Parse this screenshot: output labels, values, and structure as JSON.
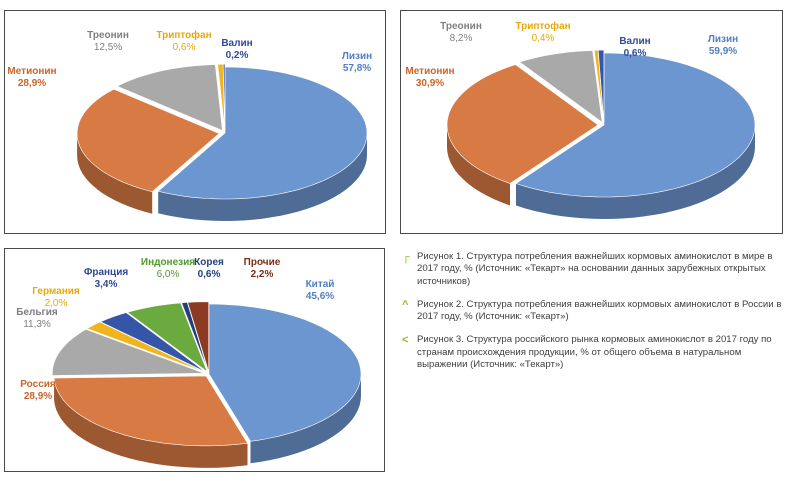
{
  "chart_data": [
    {
      "type": "pie",
      "title": "",
      "style": "3d-exploded-tilted",
      "slices": [
        {
          "label": "Лизин",
          "value": 57.8,
          "value_text": "57,8%",
          "color": "#6c96cf",
          "label_color": "#4f7fc0"
        },
        {
          "label": "Метионин",
          "value": 28.9,
          "value_text": "28,9%",
          "color": "#d87a43",
          "label_color": "#c8652a"
        },
        {
          "label": "Треонин",
          "value": 12.5,
          "value_text": "12,5%",
          "color": "#a9a9a9",
          "label_color": "#7f7f7f"
        },
        {
          "label": "Триптофан",
          "value": 0.6,
          "value_text": "0,6%",
          "color": "#f0b41e",
          "label_color": "#e8a80c"
        },
        {
          "label": "Валин",
          "value": 0.2,
          "value_text": "0,2%",
          "color": "#3556a8",
          "label_color": "#2f4a96"
        }
      ]
    },
    {
      "type": "pie",
      "title": "",
      "style": "3d-exploded-tilted",
      "slices": [
        {
          "label": "Лизин",
          "value": 59.9,
          "value_text": "59,9%",
          "color": "#6c96cf",
          "label_color": "#4f7fc0"
        },
        {
          "label": "Метионин",
          "value": 30.9,
          "value_text": "30,9%",
          "color": "#d87a43",
          "label_color": "#c8652a"
        },
        {
          "label": "Треонин",
          "value": 8.2,
          "value_text": "8,2%",
          "color": "#a9a9a9",
          "label_color": "#7f7f7f"
        },
        {
          "label": "Триптофан",
          "value": 0.4,
          "value_text": "0,4%",
          "color": "#f0b41e",
          "label_color": "#e8a80c"
        },
        {
          "label": "Валин",
          "value": 0.6,
          "value_text": "0,6%",
          "color": "#3556a8",
          "label_color": "#2f4a96"
        }
      ]
    },
    {
      "type": "pie",
      "title": "",
      "style": "3d-exploded-tilted",
      "slices": [
        {
          "label": "Китай",
          "value": 45.6,
          "value_text": "45,6%",
          "color": "#6c96cf",
          "label_color": "#4f7fc0"
        },
        {
          "label": "Россия",
          "value": 28.9,
          "value_text": "28,9%",
          "color": "#d87a43",
          "label_color": "#c8652a"
        },
        {
          "label": "Бельгия",
          "value": 11.3,
          "value_text": "11,3%",
          "color": "#a9a9a9",
          "label_color": "#7f7f7f"
        },
        {
          "label": "Германия",
          "value": 2.0,
          "value_text": "2,0%",
          "color": "#f0b41e",
          "label_color": "#e8a80c"
        },
        {
          "label": "Франция",
          "value": 3.4,
          "value_text": "3,4%",
          "color": "#3556a8",
          "label_color": "#2f4a96"
        },
        {
          "label": "Индонезия",
          "value": 6.0,
          "value_text": "6,0%",
          "color": "#6aaa3e",
          "label_color": "#4f9a2c"
        },
        {
          "label": "Корея",
          "value": 0.6,
          "value_text": "0,6%",
          "color": "#24407c",
          "label_color": "#24407c"
        },
        {
          "label": "Прочие",
          "value": 2.2,
          "value_text": "2,2%",
          "color": "#8c3b22",
          "label_color": "#7a2d18"
        }
      ]
    }
  ],
  "captions": [
    {
      "marker": "┌",
      "text": "Рисунок 1. Структура потребления важнейших кормовых аминокислот в мире в 2017 году, % (Источник: «Текарт» на основании данных зарубежных открытых источников)"
    },
    {
      "marker": "^",
      "text": "Рисунок 2. Структура потребления важнейших кормовых аминокислот в России в 2017 году, % (Источник: «Текарт»)"
    },
    {
      "marker": "<",
      "text": "Рисунок 3. Структура российского рынка кормовых аминокислот в 2017 году по странам происхождения продукции, % от общего объема в натуральном выражении (Источник: «Текарт»)"
    }
  ]
}
